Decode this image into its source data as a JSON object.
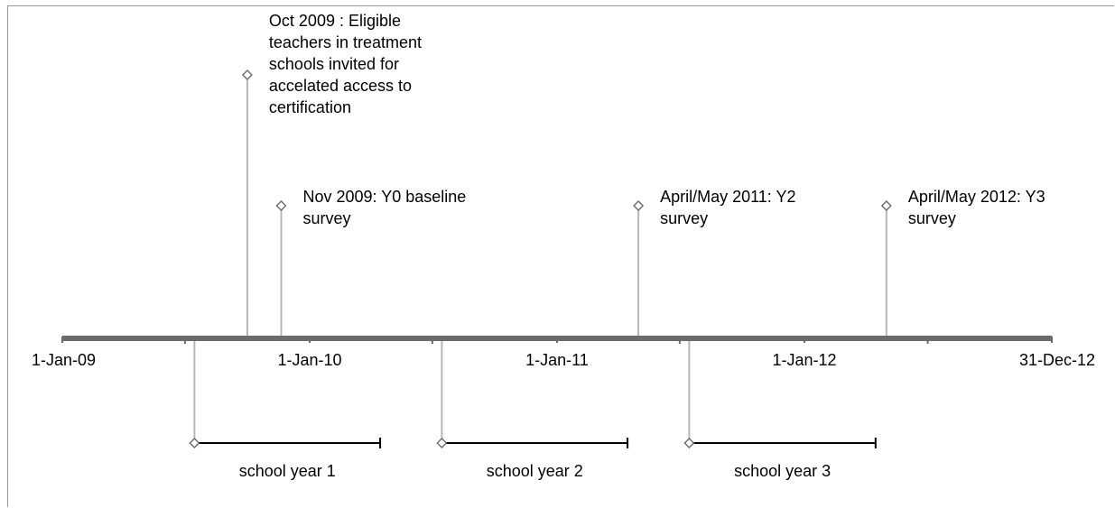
{
  "chart_data": {
    "type": "timeline",
    "axis": {
      "start": "2009-01-01",
      "end": "2012-12-31",
      "tick_labels": [
        "1-Jan-09",
        "1-Jan-10",
        "1-Jan-11",
        "1-Jan-12",
        "31-Dec-12"
      ],
      "tick_dates": [
        "2009-01-01",
        "2010-01-01",
        "2011-01-01",
        "2012-01-01",
        "2012-12-31"
      ],
      "midyear_ticks": [
        "2009-07-01",
        "2010-07-01",
        "2011-07-01",
        "2012-07-01"
      ]
    },
    "events": [
      {
        "date": "2009-10-01",
        "label_lines": [
          "Oct 2009 : Eligible",
          "teachers in treatment",
          "schools invited for",
          "accelated access to",
          "certification"
        ]
      },
      {
        "date": "2009-11-20",
        "label_lines": [
          "Nov 2009: Y0 baseline",
          "survey"
        ]
      },
      {
        "date": "2011-05-01",
        "label_lines": [
          "April/May 2011: Y2",
          "survey"
        ]
      },
      {
        "date": "2012-05-01",
        "label_lines": [
          "April/May 2012: Y3",
          "survey"
        ]
      }
    ],
    "periods": [
      {
        "label": "school year 1",
        "start": "2009-07-15",
        "end": "2010-04-15"
      },
      {
        "label": "school year 2",
        "start": "2010-07-15",
        "end": "2011-04-15"
      },
      {
        "label": "school year 3",
        "start": "2011-07-15",
        "end": "2012-04-15"
      }
    ],
    "colors": {
      "axis": "#6b6b6b",
      "stem": "#b7b7b7",
      "marker_stroke": "#6b6b6b",
      "period_bar": "#000000",
      "text": "#000000"
    }
  }
}
